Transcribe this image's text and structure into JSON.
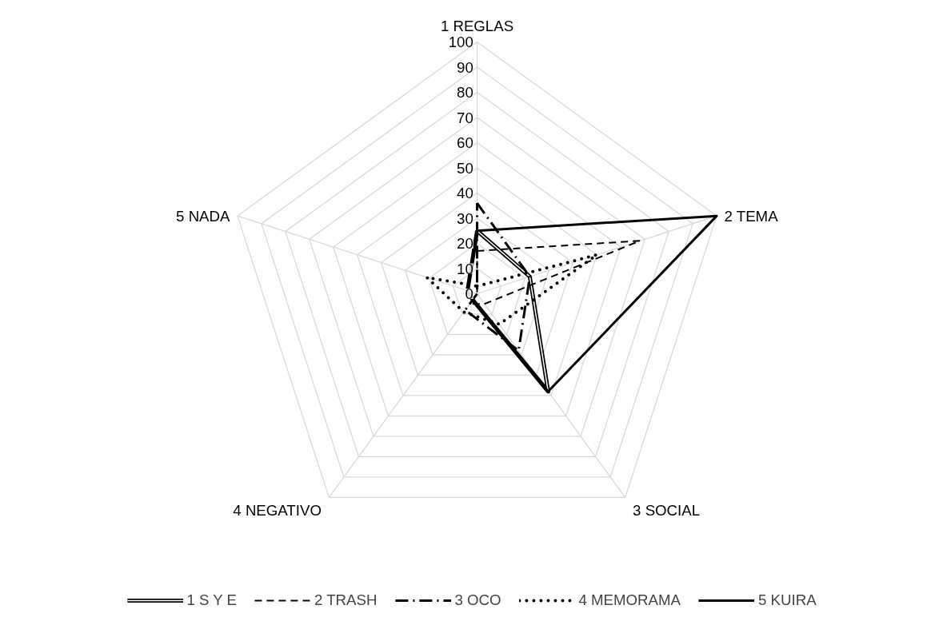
{
  "chart_data": {
    "type": "radar",
    "categories": [
      "1 REGLAS",
      "2 TEMA",
      "3 SOCIAL",
      "4 NEGATIVO",
      "5 NADA"
    ],
    "ylim": [
      0,
      100
    ],
    "yticks": [
      0,
      10,
      20,
      30,
      40,
      50,
      60,
      70,
      80,
      90,
      100
    ],
    "grid": true,
    "legend": "bottom",
    "series": [
      {
        "name": "1 S Y E",
        "color": "#000000",
        "line_style": "double",
        "values": [
          25,
          22,
          48,
          3,
          4
        ]
      },
      {
        "name": "2 TRASH",
        "color": "#000000",
        "line_style": "dashed",
        "values": [
          17,
          68,
          5,
          5,
          0
        ]
      },
      {
        "name": "3 OCO",
        "color": "#000000",
        "line_style": "dashdot",
        "values": [
          36,
          22,
          28,
          8,
          0
        ]
      },
      {
        "name": "4 MEMORAMA",
        "color": "#000000",
        "line_style": "dotted",
        "values": [
          3,
          50,
          15,
          9,
          21
        ]
      },
      {
        "name": "5 KUIRA",
        "color": "#000000",
        "line_style": "solid",
        "values": [
          25,
          100,
          48,
          3,
          4
        ]
      }
    ]
  }
}
